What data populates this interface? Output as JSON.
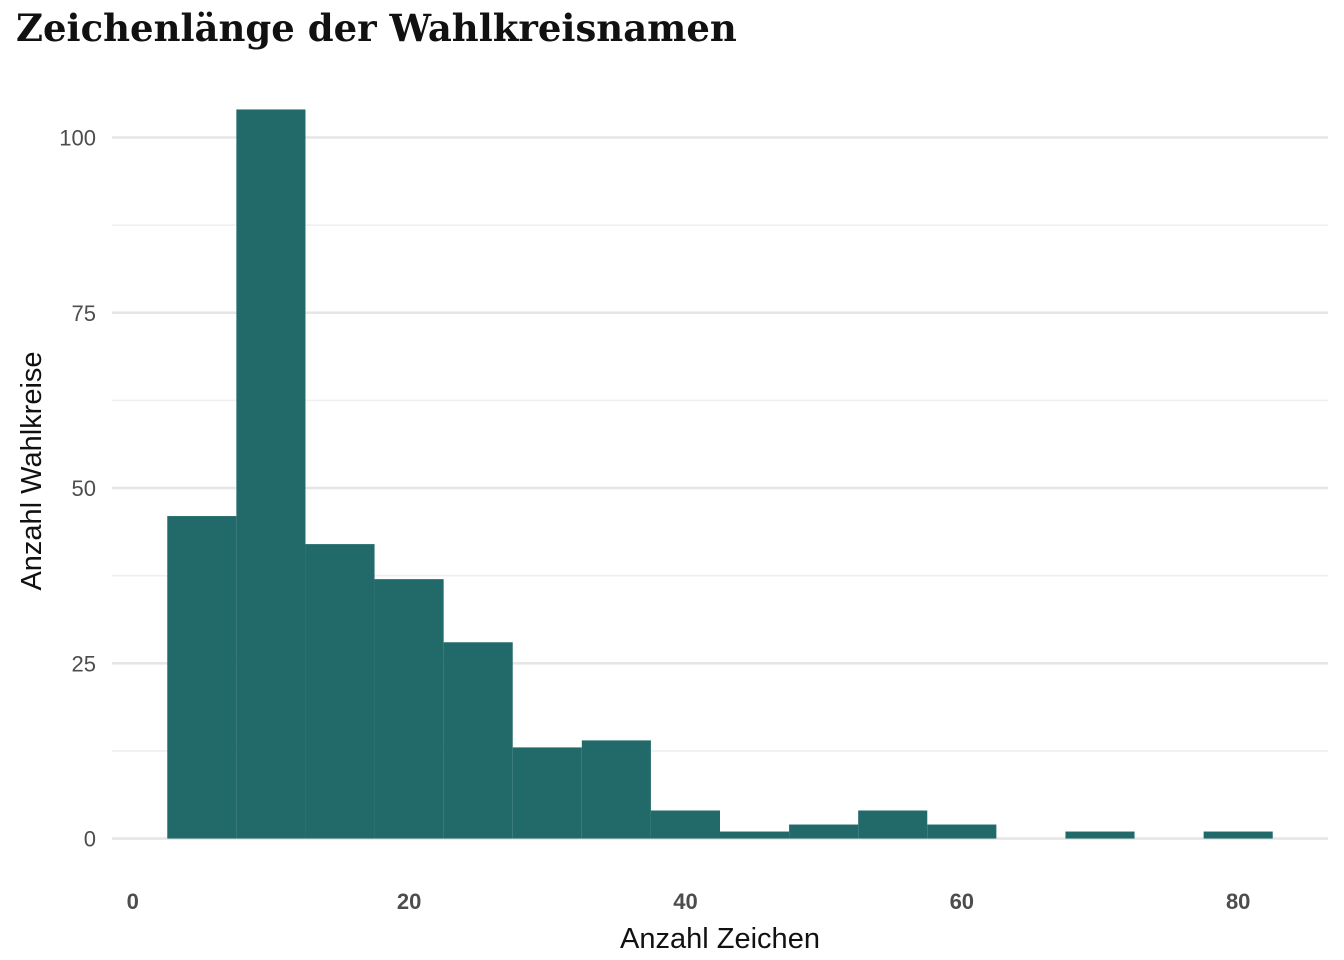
{
  "chart_data": {
    "type": "bar",
    "title": "Zeichenlänge der Wahlkreisnamen",
    "xlabel": "Anzahl Zeichen",
    "ylabel": "Anzahl Wahlkreise",
    "bin_width": 5,
    "bins": [
      {
        "start": 2.5,
        "end": 7.5,
        "count": 46
      },
      {
        "start": 7.5,
        "end": 12.5,
        "count": 104
      },
      {
        "start": 12.5,
        "end": 17.5,
        "count": 42
      },
      {
        "start": 17.5,
        "end": 22.5,
        "count": 37
      },
      {
        "start": 22.5,
        "end": 27.5,
        "count": 28
      },
      {
        "start": 27.5,
        "end": 32.5,
        "count": 13
      },
      {
        "start": 32.5,
        "end": 37.5,
        "count": 14
      },
      {
        "start": 37.5,
        "end": 42.5,
        "count": 4
      },
      {
        "start": 42.5,
        "end": 47.5,
        "count": 1
      },
      {
        "start": 47.5,
        "end": 52.5,
        "count": 2
      },
      {
        "start": 52.5,
        "end": 57.5,
        "count": 4
      },
      {
        "start": 57.5,
        "end": 62.5,
        "count": 2
      },
      {
        "start": 62.5,
        "end": 67.5,
        "count": 0
      },
      {
        "start": 67.5,
        "end": 72.5,
        "count": 1
      },
      {
        "start": 72.5,
        "end": 77.5,
        "count": 0
      },
      {
        "start": 77.5,
        "end": 82.5,
        "count": 1
      }
    ],
    "xlim": [
      -1.5,
      86.5
    ],
    "ylim": [
      -5.2,
      109.2
    ],
    "x_ticks": [
      0,
      20,
      40,
      60,
      80
    ],
    "x_tick_labels": [
      "0",
      "20",
      "40",
      "60",
      "80"
    ],
    "y_ticks": [
      0,
      25,
      50,
      75,
      100
    ],
    "y_tick_labels": [
      "0",
      "25",
      "50",
      "75",
      "100"
    ],
    "y_minor_ticks": [
      12.5,
      37.5,
      62.5,
      87.5
    ],
    "grid": "horizontal",
    "bar_color": "#226a6a",
    "grid_color": "#e6e6e6"
  }
}
